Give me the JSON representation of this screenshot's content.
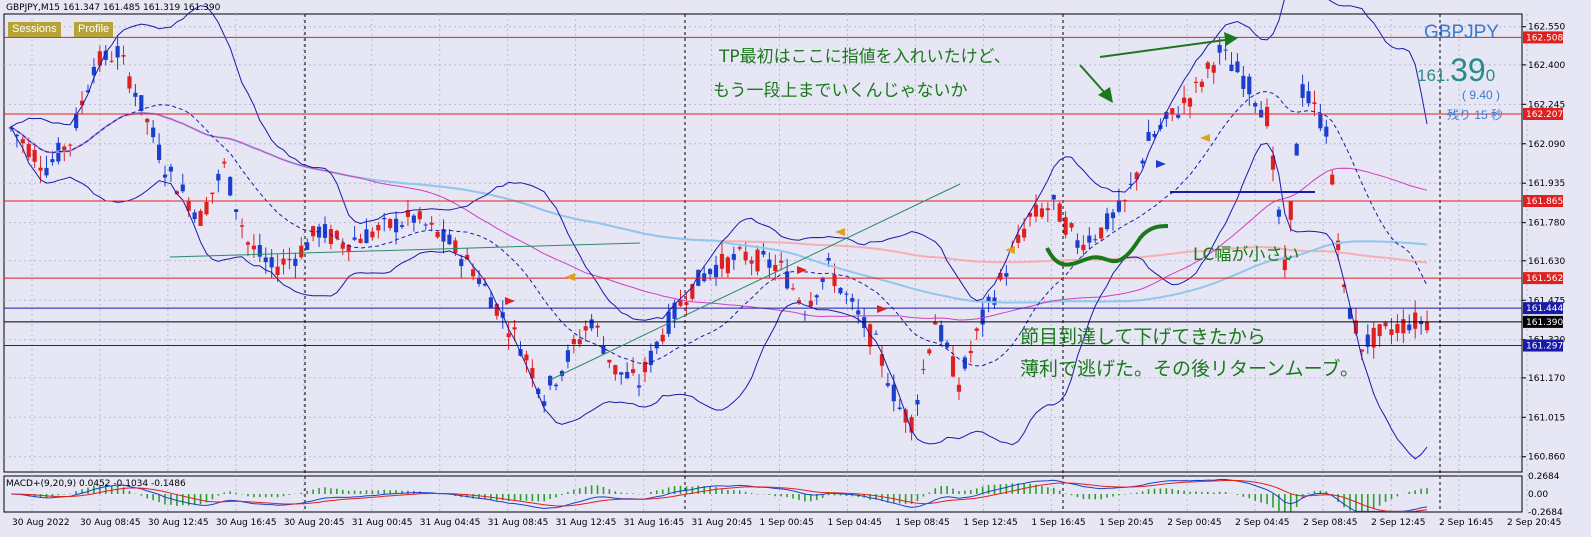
{
  "header": "GBPJPY,M15  161.347 161.485 161.319 161.390",
  "buttons": {
    "sessions": "Sessions",
    "profile": "Profile"
  },
  "quote": {
    "symbol": "GBPJPY",
    "big": "161.",
    "pips": "39",
    "frac": "0",
    "spread": "( 9.40 )",
    "timer": "残り 15 秒"
  },
  "annotations": {
    "tp1": "TP最初はここに指値を入れいたけど、",
    "tp2": "もう一段上までいくんじゃないか",
    "lc": "LC幅が小さい",
    "exit1": "節目到達して下げてきたから",
    "exit2": "薄利で逃げた。その後リターンムーブ。"
  },
  "macd_label": "MACD+(9,20,9) 0.0452 -0.1034 -0.1486",
  "colors": {
    "bg": "#e6e6f5",
    "bull": "#1a3fcf",
    "bear": "#e0201e",
    "hline_red": "#e0201e",
    "hline_blue": "#1a1aaa",
    "annotation": "#1a7a1a"
  },
  "chart_data": {
    "type": "candlestick",
    "symbol": "GBPJPY",
    "timeframe": "M15",
    "ylim": [
      160.8,
      162.6
    ],
    "y_ticks": [
      "162.550",
      "162.400",
      "162.245",
      "162.090",
      "161.935",
      "161.780",
      "161.630",
      "161.475",
      "161.320",
      "161.170",
      "161.015",
      "160.860"
    ],
    "x_ticks": [
      "30 Aug 2022",
      "30 Aug 08:45",
      "30 Aug 12:45",
      "30 Aug 16:45",
      "30 Aug 20:45",
      "31 Aug 00:45",
      "31 Aug 04:45",
      "31 Aug 08:45",
      "31 Aug 12:45",
      "31 Aug 16:45",
      "31 Aug 20:45",
      "1 Sep 00:45",
      "1 Sep 04:45",
      "1 Sep 08:45",
      "1 Sep 12:45",
      "1 Sep 16:45",
      "1 Sep 20:45",
      "2 Sep 00:45",
      "2 Sep 04:45",
      "2 Sep 08:45",
      "2 Sep 12:45",
      "2 Sep 16:45",
      "2 Sep 20:45"
    ],
    "price_levels": [
      {
        "value": 162.508,
        "label": "162.508",
        "color": "#e0201e"
      },
      {
        "value": 162.207,
        "label": "162.207",
        "color": "#e0201e"
      },
      {
        "value": 161.865,
        "label": "161.865",
        "color": "#e0201e"
      },
      {
        "value": 161.562,
        "label": "161.562",
        "color": "#e0201e"
      },
      {
        "value": 161.444,
        "label": "161.444",
        "color": "#1a1aaa"
      },
      {
        "value": 161.39,
        "label": "161.390",
        "color": "#000000"
      },
      {
        "value": 161.297,
        "label": "161.297",
        "color": "#1a1aaa"
      }
    ],
    "close_path": [
      [
        0,
        162.15
      ],
      [
        6,
        162.0
      ],
      [
        10,
        162.1
      ],
      [
        14,
        162.4
      ],
      [
        18,
        162.45
      ],
      [
        21,
        162.3
      ],
      [
        26,
        162.0
      ],
      [
        32,
        161.8
      ],
      [
        36,
        162.0
      ],
      [
        40,
        161.7
      ],
      [
        44,
        161.6
      ],
      [
        48,
        161.65
      ],
      [
        52,
        161.75
      ],
      [
        56,
        161.7
      ],
      [
        62,
        161.75
      ],
      [
        68,
        161.8
      ],
      [
        74,
        161.7
      ],
      [
        78,
        161.6
      ],
      [
        82,
        161.45
      ],
      [
        86,
        161.3
      ],
      [
        90,
        161.1
      ],
      [
        94,
        161.25
      ],
      [
        98,
        161.4
      ],
      [
        102,
        161.2
      ],
      [
        106,
        161.15
      ],
      [
        110,
        161.35
      ],
      [
        114,
        161.5
      ],
      [
        118,
        161.6
      ],
      [
        124,
        161.65
      ],
      [
        130,
        161.6
      ],
      [
        134,
        161.45
      ],
      [
        138,
        161.6
      ],
      [
        142,
        161.45
      ],
      [
        146,
        161.3
      ],
      [
        150,
        161.05
      ],
      [
        152,
        161.0
      ],
      [
        156,
        161.4
      ],
      [
        160,
        161.15
      ],
      [
        164,
        161.4
      ],
      [
        168,
        161.6
      ],
      [
        172,
        161.8
      ],
      [
        176,
        161.85
      ],
      [
        180,
        161.7
      ],
      [
        184,
        161.75
      ],
      [
        188,
        161.85
      ],
      [
        192,
        162.1
      ],
      [
        196,
        162.2
      ],
      [
        200,
        162.3
      ],
      [
        204,
        162.45
      ],
      [
        208,
        162.35
      ],
      [
        212,
        162.2
      ],
      [
        215,
        161.6
      ],
      [
        218,
        162.3
      ],
      [
        222,
        162.15
      ],
      [
        225,
        161.5
      ],
      [
        228,
        161.3
      ],
      [
        232,
        161.35
      ],
      [
        236,
        161.39
      ]
    ],
    "macd": {
      "name": "MACD+(9,20,9)",
      "values": [
        0.0452,
        -0.1034,
        -0.1486
      ],
      "y_ticks": [
        "0.2684",
        "0.00",
        "-0.2684"
      ],
      "ylim": [
        -0.2684,
        0.2684
      ]
    }
  }
}
